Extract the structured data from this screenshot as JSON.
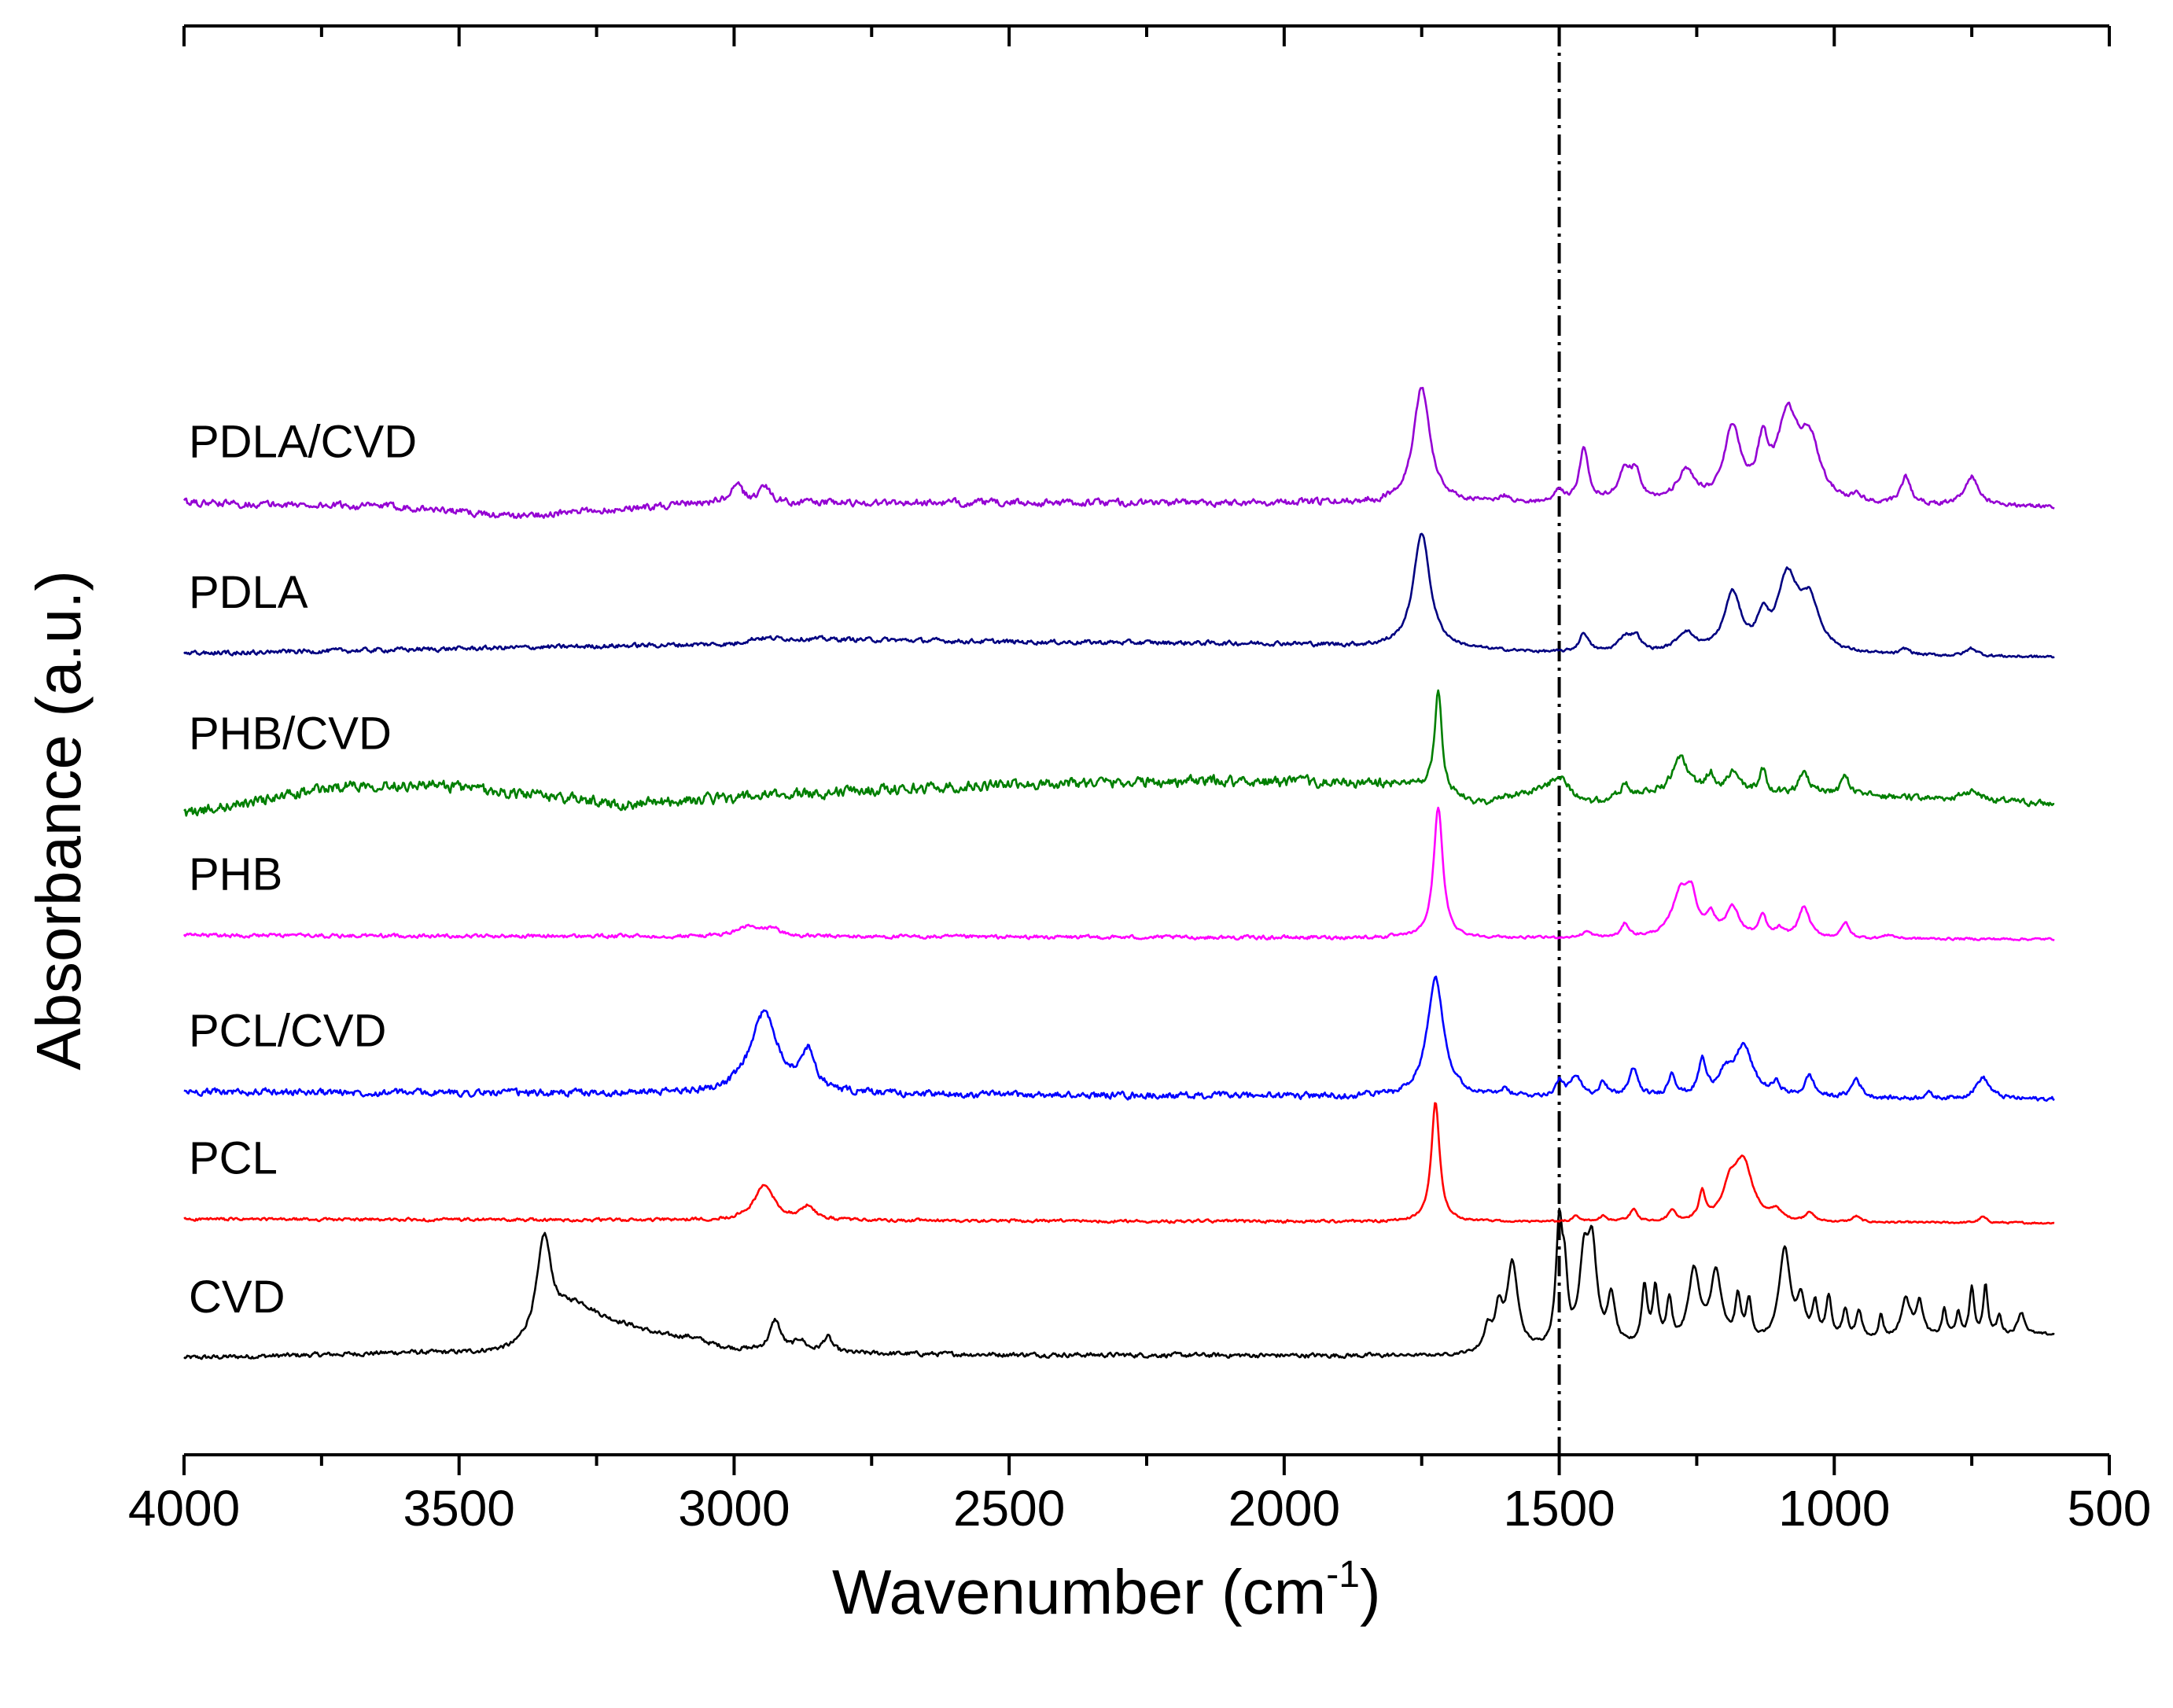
{
  "chart_data": {
    "type": "line",
    "title": "",
    "xlabel": "Wavenumber (cm",
    "xlabel_sup": "-1",
    "xlabel_close": ")",
    "ylabel": "Absorbance (a.u.)",
    "xlim": [
      4000,
      500
    ],
    "ylim": [
      -0.5,
      6.9
    ],
    "xticks": [
      4000,
      3500,
      3000,
      2500,
      2000,
      1500,
      1000,
      500
    ],
    "xtick_labels": [
      "4000",
      "3500",
      "3000",
      "2500",
      "2000",
      "1500",
      "1000",
      "500"
    ],
    "minor_xticks": [
      3750,
      3250,
      2750,
      2250,
      1750,
      1250,
      750
    ],
    "reference_line": {
      "x": 1500,
      "style": "dash-dot",
      "color": "#000000"
    },
    "yticks_visible": false,
    "series": [
      {
        "name": "CVD",
        "label": "CVD",
        "color": "#000000",
        "offset": 0,
        "noise": 0.006,
        "baseline": [
          [
            4000,
            0.0
          ],
          [
            3600,
            0.02
          ],
          [
            3400,
            0.0
          ],
          [
            3360,
            0.05
          ],
          [
            3000,
            0.02
          ],
          [
            1700,
            0.01
          ],
          [
            600,
            0.12
          ]
        ],
        "peaks": [
          [
            3345,
            0.48,
            15
          ],
          [
            3290,
            0.18,
            55
          ],
          [
            3200,
            0.09,
            90
          ],
          [
            3080,
            0.04,
            40
          ],
          [
            2925,
            0.16,
            12
          ],
          [
            2880,
            0.06,
            12
          ],
          [
            2830,
            0.08,
            10
          ],
          [
            1630,
            0.12,
            8
          ],
          [
            1610,
            0.2,
            8
          ],
          [
            1585,
            0.45,
            12
          ],
          [
            1500,
            0.62,
            7
          ],
          [
            1490,
            0.3,
            6
          ],
          [
            1455,
            0.42,
            10
          ],
          [
            1440,
            0.48,
            10
          ],
          [
            1405,
            0.25,
            8
          ],
          [
            1345,
            0.3,
            6
          ],
          [
            1325,
            0.28,
            6
          ],
          [
            1300,
            0.22,
            6
          ],
          [
            1255,
            0.38,
            12
          ],
          [
            1215,
            0.36,
            12
          ],
          [
            1175,
            0.22,
            6
          ],
          [
            1155,
            0.2,
            6
          ],
          [
            1090,
            0.48,
            12
          ],
          [
            1060,
            0.2,
            8
          ],
          [
            1035,
            0.18,
            6
          ],
          [
            1010,
            0.22,
            6
          ],
          [
            980,
            0.15,
            6
          ],
          [
            955,
            0.15,
            6
          ],
          [
            915,
            0.12,
            5
          ],
          [
            870,
            0.2,
            10
          ],
          [
            845,
            0.18,
            8
          ],
          [
            800,
            0.14,
            5
          ],
          [
            775,
            0.12,
            5
          ],
          [
            750,
            0.25,
            5
          ],
          [
            725,
            0.26,
            5
          ],
          [
            700,
            0.1,
            5
          ],
          [
            660,
            0.12,
            8
          ]
        ]
      },
      {
        "name": "PCL",
        "label": "PCL",
        "color": "#ff0000",
        "offset": 0.72,
        "noise": 0.004,
        "baseline": [
          [
            4000,
            0.0
          ],
          [
            600,
            -0.02
          ]
        ],
        "peaks": [
          [
            2945,
            0.18,
            22
          ],
          [
            2865,
            0.07,
            14
          ],
          [
            1725,
            0.62,
            9
          ],
          [
            1470,
            0.03,
            8
          ],
          [
            1420,
            0.03,
            8
          ],
          [
            1365,
            0.06,
            8
          ],
          [
            1295,
            0.06,
            7
          ],
          [
            1240,
            0.14,
            7
          ],
          [
            1190,
            0.15,
            15
          ],
          [
            1165,
            0.3,
            20
          ],
          [
            1105,
            0.05,
            10
          ],
          [
            1045,
            0.05,
            8
          ],
          [
            960,
            0.03,
            8
          ],
          [
            730,
            0.03,
            8
          ]
        ]
      },
      {
        "name": "PCL/CVD",
        "label": "PCL/CVD",
        "color": "#0000ff",
        "offset": 1.38,
        "noise": 0.009,
        "baseline": [
          [
            4000,
            0.0
          ],
          [
            600,
            -0.04
          ]
        ],
        "peaks": [
          [
            2945,
            0.42,
            30
          ],
          [
            2865,
            0.2,
            15
          ],
          [
            1725,
            0.62,
            18
          ],
          [
            1600,
            0.03,
            10
          ],
          [
            1500,
            0.08,
            8
          ],
          [
            1470,
            0.1,
            12
          ],
          [
            1420,
            0.08,
            8
          ],
          [
            1365,
            0.14,
            10
          ],
          [
            1295,
            0.12,
            8
          ],
          [
            1240,
            0.18,
            8
          ],
          [
            1200,
            0.1,
            15
          ],
          [
            1165,
            0.26,
            20
          ],
          [
            1105,
            0.06,
            10
          ],
          [
            1045,
            0.11,
            10
          ],
          [
            960,
            0.1,
            10
          ],
          [
            830,
            0.03,
            8
          ],
          [
            730,
            0.11,
            15
          ]
        ]
      },
      {
        "name": "PHB",
        "label": "PHB",
        "color": "#ff00ff",
        "offset": 2.19,
        "noise": 0.005,
        "baseline": [
          [
            4000,
            0.0
          ],
          [
            600,
            -0.02
          ]
        ],
        "peaks": [
          [
            2975,
            0.05,
            25
          ],
          [
            2930,
            0.04,
            15
          ],
          [
            1720,
            0.68,
            10
          ],
          [
            1450,
            0.03,
            10
          ],
          [
            1380,
            0.07,
            8
          ],
          [
            1280,
            0.22,
            18
          ],
          [
            1260,
            0.18,
            12
          ],
          [
            1225,
            0.1,
            10
          ],
          [
            1185,
            0.15,
            15
          ],
          [
            1130,
            0.11,
            8
          ],
          [
            1100,
            0.04,
            8
          ],
          [
            1055,
            0.16,
            12
          ],
          [
            980,
            0.08,
            8
          ],
          [
            900,
            0.02,
            10
          ]
        ]
      },
      {
        "name": "PHB/CVD",
        "label": "PHB/CVD",
        "color": "#007f00",
        "offset": 2.92,
        "noise": 0.014,
        "baseline": [
          [
            4000,
            -0.1
          ],
          [
            3700,
            0.05
          ],
          [
            3550,
            0.05
          ],
          [
            3200,
            -0.05
          ],
          [
            2900,
            0.0
          ],
          [
            2700,
            0.03
          ],
          [
            2400,
            0.06
          ],
          [
            2100,
            0.07
          ],
          [
            1760,
            0.05
          ],
          [
            1650,
            -0.05
          ],
          [
            1500,
            0.05
          ],
          [
            1450,
            -0.05
          ],
          [
            1350,
            0.0
          ],
          [
            1000,
            0.0
          ],
          [
            600,
            -0.05
          ]
        ],
        "peaks": [
          [
            1720,
            0.52,
            8
          ],
          [
            1500,
            0.05,
            15
          ],
          [
            1380,
            0.07,
            8
          ],
          [
            1280,
            0.18,
            18
          ],
          [
            1225,
            0.09,
            10
          ],
          [
            1185,
            0.1,
            15
          ],
          [
            1130,
            0.12,
            8
          ],
          [
            1055,
            0.1,
            12
          ],
          [
            980,
            0.1,
            8
          ],
          [
            750,
            0.05,
            20
          ]
        ]
      },
      {
        "name": "PDLA",
        "label": "PDLA",
        "color": "#000080",
        "offset": 3.65,
        "noise": 0.006,
        "baseline": [
          [
            4000,
            0.0
          ],
          [
            3000,
            0.05
          ],
          [
            2960,
            0.08
          ],
          [
            2500,
            0.06
          ],
          [
            2000,
            0.05
          ],
          [
            1800,
            0.03
          ],
          [
            1500,
            0.0
          ],
          [
            600,
            -0.02
          ]
        ],
        "peaks": [
          [
            1750,
            0.6,
            18
          ],
          [
            1455,
            0.1,
            10
          ],
          [
            1380,
            0.08,
            15
          ],
          [
            1360,
            0.07,
            10
          ],
          [
            1270,
            0.1,
            20
          ],
          [
            1185,
            0.3,
            18
          ],
          [
            1130,
            0.15,
            12
          ],
          [
            1085,
            0.37,
            22
          ],
          [
            1045,
            0.25,
            22
          ],
          [
            870,
            0.03,
            10
          ],
          [
            750,
            0.04,
            12
          ]
        ]
      },
      {
        "name": "PDLA/CVD",
        "label": "PDLA/CVD",
        "color": "#9400d3",
        "offset": 4.43,
        "noise": 0.009,
        "baseline": [
          [
            4000,
            0.0
          ],
          [
            3600,
            -0.02
          ],
          [
            3400,
            -0.07
          ],
          [
            3050,
            0.0
          ],
          [
            2900,
            0.0
          ],
          [
            2500,
            0.0
          ],
          [
            1800,
            0.0
          ],
          [
            600,
            -0.02
          ]
        ],
        "peaks": [
          [
            2995,
            0.09,
            12
          ],
          [
            2945,
            0.09,
            12
          ],
          [
            1750,
            0.6,
            18
          ],
          [
            1600,
            0.03,
            12
          ],
          [
            1500,
            0.06,
            8
          ],
          [
            1455,
            0.28,
            10
          ],
          [
            1380,
            0.16,
            15
          ],
          [
            1360,
            0.13,
            10
          ],
          [
            1270,
            0.15,
            20
          ],
          [
            1185,
            0.38,
            18
          ],
          [
            1130,
            0.26,
            12
          ],
          [
            1085,
            0.42,
            22
          ],
          [
            1045,
            0.3,
            22
          ],
          [
            960,
            0.03,
            10
          ],
          [
            870,
            0.14,
            10
          ],
          [
            750,
            0.15,
            15
          ]
        ]
      }
    ]
  }
}
